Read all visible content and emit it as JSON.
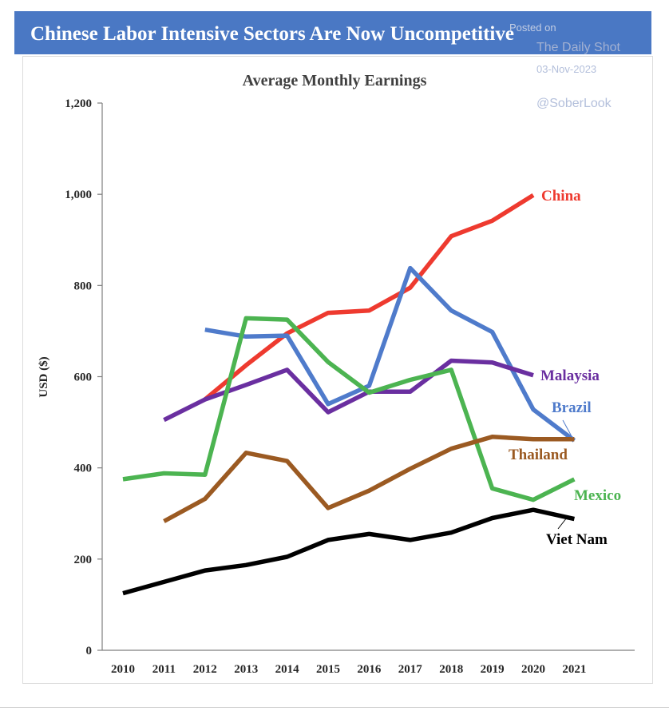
{
  "header": {
    "banner_title": "Chinese Labor Intensive Sectors Are Now Uncompetitive",
    "watermark": {
      "posted": "Posted on",
      "outlet": "The Daily Shot",
      "date": "03-Nov-2023",
      "handle": "@SoberLook"
    }
  },
  "chart_data": {
    "type": "line",
    "title": "Average Monthly Earnings",
    "xlabel": "",
    "ylabel": "USD ($)",
    "x": [
      "2010",
      "2011",
      "2012",
      "2013",
      "2014",
      "2015",
      "2016",
      "2017",
      "2018",
      "2019",
      "2020",
      "2021"
    ],
    "ylim": [
      0,
      1200
    ],
    "yticks": [
      0,
      200,
      400,
      600,
      800,
      1000,
      1200
    ],
    "ytick_labels": [
      "0",
      "200",
      "400",
      "600",
      "800",
      "1,000",
      "1,200"
    ],
    "grid": false,
    "legend": "direct labels at line ends",
    "series": [
      {
        "name": "China",
        "color": "#ee3a2f",
        "values": [
          null,
          null,
          550,
          625,
          695,
          740,
          745,
          795,
          908,
          942,
          998,
          null
        ]
      },
      {
        "name": "Brazil",
        "color": "#4f7bcb",
        "values": [
          null,
          null,
          703,
          688,
          690,
          540,
          580,
          838,
          745,
          698,
          528,
          460
        ]
      },
      {
        "name": "Malaysia",
        "color": "#6a2fa0",
        "values": [
          null,
          505,
          550,
          582,
          615,
          522,
          567,
          567,
          635,
          631,
          603,
          null
        ]
      },
      {
        "name": "Mexico",
        "color": "#4cb451",
        "values": [
          375,
          388,
          385,
          728,
          725,
          632,
          565,
          593,
          615,
          355,
          330,
          375
        ]
      },
      {
        "name": "Thailand",
        "color": "#9b5a22",
        "values": [
          null,
          283,
          332,
          433,
          415,
          312,
          350,
          398,
          442,
          468,
          463,
          463
        ]
      },
      {
        "name": "Viet Nam",
        "color": "#000000",
        "values": [
          125,
          150,
          175,
          187,
          205,
          242,
          255,
          242,
          258,
          290,
          308,
          288
        ]
      }
    ]
  }
}
